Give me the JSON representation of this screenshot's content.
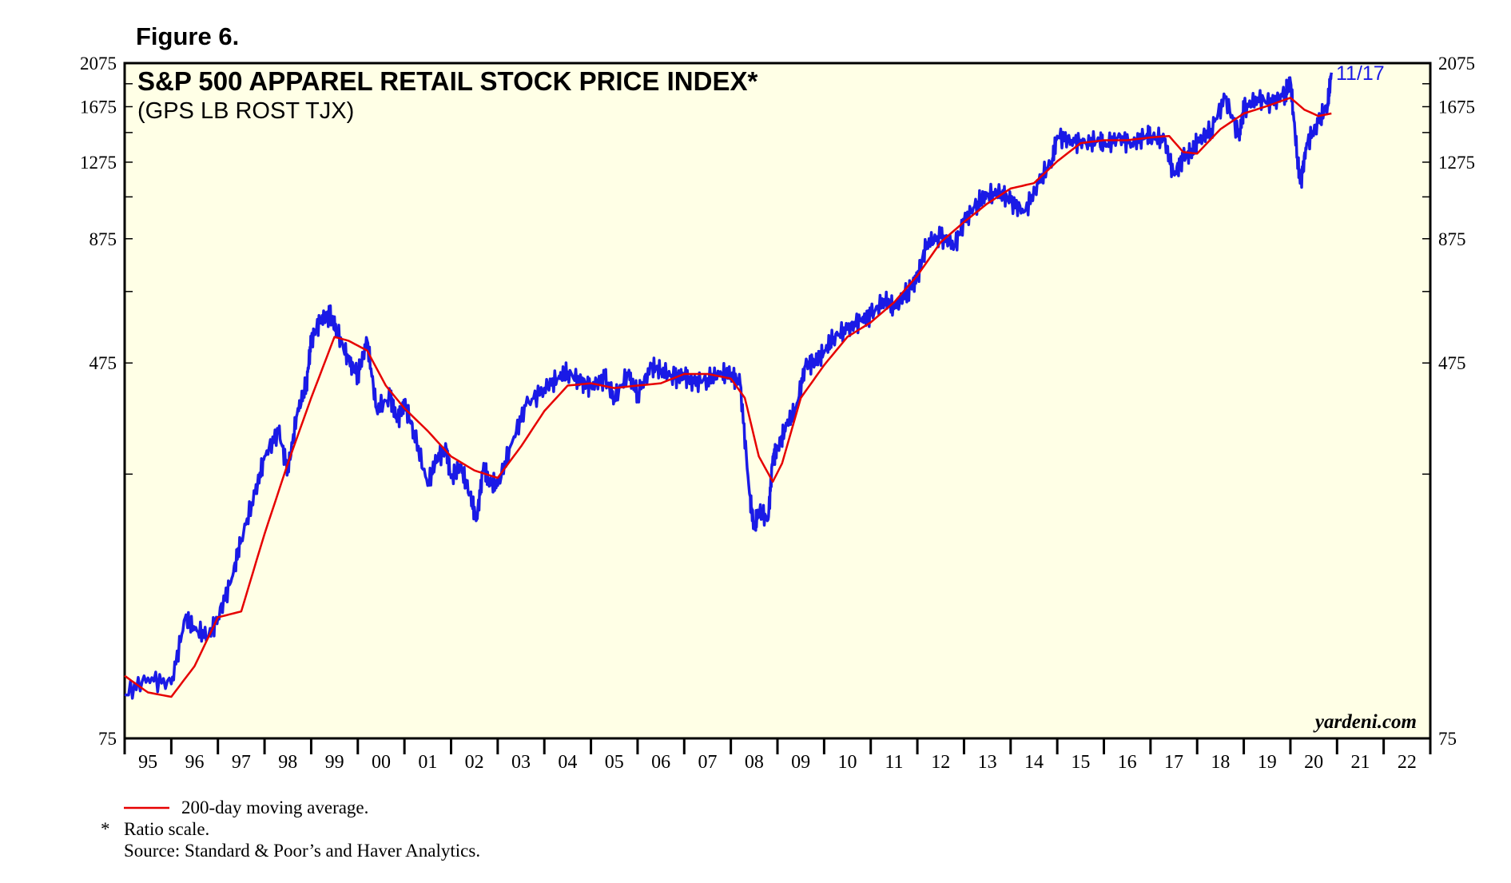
{
  "figure_label": "Figure 6.",
  "footnotes": {
    "legend_ma": "200-day moving average.",
    "asterisk": "*",
    "ratio_note": "Ratio scale.",
    "source": "Source: Standard & Poor’s and Haver Analytics."
  },
  "brand": "yardeni.com",
  "last_date_label": "11/17",
  "colors": {
    "price": "#1a1ae6",
    "moving_average": "#e60000",
    "plot_bg": "#ffffe6"
  },
  "chart_data": {
    "type": "line",
    "title": "S&P 500 APPAREL RETAIL STOCK PRICE INDEX*",
    "subtitle": "(GPS LB ROST TJX)",
    "y_scale": "log",
    "ylim": [
      75,
      2075
    ],
    "yticks": [
      75,
      475,
      875,
      1275,
      1675,
      2075
    ],
    "ytick_labels": [
      "75",
      "475",
      "875",
      "1275",
      "1675",
      "2075"
    ],
    "xlim": [
      1995.0,
      2023.0
    ],
    "xtick_labels": [
      "95",
      "96",
      "97",
      "98",
      "99",
      "00",
      "01",
      "02",
      "03",
      "04",
      "05",
      "06",
      "07",
      "08",
      "09",
      "10",
      "11",
      "12",
      "13",
      "14",
      "15",
      "16",
      "17",
      "18",
      "19",
      "20",
      "21",
      "22"
    ],
    "series": [
      {
        "name": "S&P 500 Apparel Retail Stock Price Index",
        "x": [
          1995.0,
          1995.5,
          1996.0,
          1996.3,
          1996.5,
          1996.8,
          1997.0,
          1997.3,
          1997.5,
          1997.8,
          1998.0,
          1998.3,
          1998.5,
          1998.7,
          1998.9,
          1999.0,
          1999.2,
          1999.4,
          1999.55,
          1999.8,
          2000.0,
          2000.2,
          2000.4,
          2000.7,
          2000.85,
          2001.0,
          2001.2,
          2001.5,
          2001.7,
          2001.9,
          2002.0,
          2002.2,
          2002.4,
          2002.55,
          2002.7,
          2002.8,
          2003.0,
          2003.3,
          2003.6,
          2004.0,
          2004.3,
          2004.5,
          2004.8,
          2005.0,
          2005.3,
          2005.5,
          2005.8,
          2006.0,
          2006.3,
          2006.5,
          2006.8,
          2007.0,
          2007.2,
          2007.5,
          2007.8,
          2008.0,
          2008.2,
          2008.4,
          2008.5,
          2008.6,
          2008.8,
          2008.9,
          2009.0,
          2009.2,
          2009.4,
          2009.6,
          2009.8,
          2010.0,
          2010.2,
          2010.5,
          2010.8,
          2011.0,
          2011.3,
          2011.5,
          2011.8,
          2012.0,
          2012.2,
          2012.5,
          2012.8,
          2013.0,
          2013.3,
          2013.5,
          2013.8,
          2014.0,
          2014.3,
          2014.6,
          2014.9,
          2015.0,
          2015.3,
          2015.6,
          2015.9,
          2016.0,
          2016.3,
          2016.6,
          2016.9,
          2017.0,
          2017.3,
          2017.5,
          2017.7,
          2017.9,
          2018.0,
          2018.3,
          2018.6,
          2018.9,
          2019.0,
          2019.3,
          2019.6,
          2019.9,
          2020.0,
          2020.15,
          2020.22,
          2020.35,
          2020.6,
          2020.8,
          2020.88
        ],
        "values": [
          93,
          101,
          98,
          136,
          128,
          124,
          136,
          165,
          200,
          250,
          300,
          340,
          280,
          370,
          430,
          530,
          590,
          600,
          560,
          480,
          450,
          530,
          380,
          400,
          360,
          390,
          340,
          260,
          300,
          310,
          270,
          285,
          250,
          220,
          290,
          265,
          260,
          320,
          385,
          420,
          440,
          455,
          430,
          425,
          440,
          400,
          450,
          410,
          465,
          460,
          440,
          450,
          430,
          440,
          450,
          450,
          430,
          250,
          210,
          230,
          220,
          300,
          310,
          350,
          380,
          470,
          480,
          500,
          540,
          560,
          590,
          600,
          650,
          620,
          680,
          720,
          860,
          880,
          850,
          950,
          1050,
          1080,
          1100,
          1050,
          1000,
          1150,
          1300,
          1450,
          1420,
          1400,
          1420,
          1380,
          1440,
          1400,
          1450,
          1450,
          1420,
          1200,
          1300,
          1350,
          1400,
          1500,
          1750,
          1450,
          1650,
          1750,
          1700,
          1800,
          1900,
          1300,
          1150,
          1400,
          1550,
          1700,
          1980
        ]
      },
      {
        "name": "200-day moving average",
        "x": [
          1995.0,
          1995.5,
          1996.0,
          1996.5,
          1997.0,
          1997.5,
          1998.0,
          1998.5,
          1999.0,
          1999.5,
          1999.8,
          2000.2,
          2000.6,
          2001.0,
          2001.5,
          2002.0,
          2002.5,
          2003.0,
          2003.5,
          2004.0,
          2004.5,
          2005.0,
          2005.5,
          2006.0,
          2006.5,
          2007.0,
          2007.5,
          2008.0,
          2008.3,
          2008.6,
          2008.9,
          2009.1,
          2009.5,
          2010.0,
          2010.5,
          2011.0,
          2011.5,
          2012.0,
          2012.5,
          2013.0,
          2013.5,
          2014.0,
          2014.5,
          2015.0,
          2015.5,
          2016.0,
          2016.5,
          2017.0,
          2017.4,
          2017.7,
          2018.0,
          2018.5,
          2019.0,
          2019.5,
          2020.0,
          2020.3,
          2020.6,
          2020.88
        ],
        "values": [
          102,
          94,
          92,
          107,
          136,
          140,
          205,
          290,
          400,
          540,
          530,
          505,
          425,
          380,
          340,
          300,
          280,
          270,
          315,
          375,
          425,
          430,
          420,
          425,
          430,
          450,
          450,
          440,
          400,
          300,
          265,
          290,
          400,
          470,
          540,
          580,
          640,
          730,
          860,
          950,
          1040,
          1120,
          1150,
          1280,
          1400,
          1420,
          1420,
          1440,
          1450,
          1340,
          1330,
          1500,
          1620,
          1680,
          1750,
          1650,
          1600,
          1620
        ]
      }
    ]
  }
}
